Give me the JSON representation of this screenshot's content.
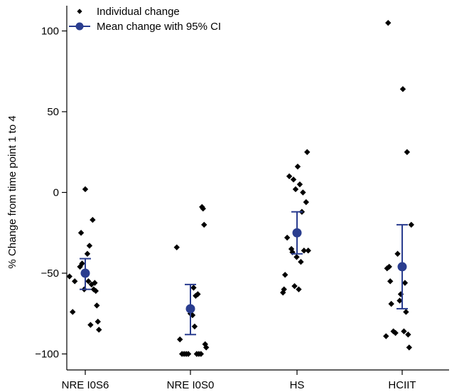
{
  "chart_data": {
    "type": "scatter",
    "title": "",
    "xlabel": "",
    "ylabel": "% Change from time point 1 to 4",
    "ylim": [
      -108,
      115
    ],
    "yticks": [
      -100,
      -50,
      0,
      50,
      100
    ],
    "ytick_labels": [
      "−100",
      "−50",
      "0",
      "50",
      "100"
    ],
    "categories": [
      "NRE I0S6",
      "NRE I0S0",
      "HS",
      "HCIIT"
    ],
    "grid": false,
    "legend_position": "top-left",
    "legend": {
      "individual_label": "Individual change",
      "mean_label": "Mean change with 95% CI"
    },
    "colors": {
      "individual": "#000000",
      "mean": "#2a3d8f"
    },
    "series": [
      {
        "name": "Individual change",
        "points": [
          [
            0.88,
            -74
          ],
          [
            0.85,
            -52
          ],
          [
            0.9,
            -55
          ],
          [
            0.95,
            -46
          ],
          [
            0.97,
            -44
          ],
          [
            0.96,
            -25
          ],
          [
            1.0,
            2
          ],
          [
            0.99,
            -60
          ],
          [
            1.02,
            -38
          ],
          [
            1.04,
            -33
          ],
          [
            1.07,
            -17
          ],
          [
            1.03,
            -55
          ],
          [
            1.06,
            -57
          ],
          [
            1.08,
            -60
          ],
          [
            1.09,
            -56
          ],
          [
            1.1,
            -61
          ],
          [
            1.11,
            -70
          ],
          [
            1.05,
            -82
          ],
          [
            1.12,
            -80
          ],
          [
            1.13,
            -85
          ]
        ]
      },
      {
        "name": "Individual change",
        "points": [
          [
            1.87,
            -34
          ],
          [
            1.9,
            -91
          ],
          [
            1.92,
            -100
          ],
          [
            1.94,
            -100
          ],
          [
            1.96,
            -100
          ],
          [
            1.98,
            -100
          ],
          [
            2.0,
            -75
          ],
          [
            2.02,
            -76
          ],
          [
            2.03,
            -59
          ],
          [
            2.04,
            -83
          ],
          [
            2.05,
            -64
          ],
          [
            2.07,
            -63
          ],
          [
            2.06,
            -100
          ],
          [
            2.08,
            -100
          ],
          [
            2.1,
            -100
          ],
          [
            2.11,
            -9
          ],
          [
            2.12,
            -10
          ],
          [
            2.13,
            -20
          ],
          [
            2.14,
            -94
          ],
          [
            2.15,
            -96
          ]
        ]
      },
      {
        "name": "Individual change",
        "points": [
          [
            2.88,
            -62
          ],
          [
            2.89,
            -60
          ],
          [
            2.9,
            -51
          ],
          [
            2.92,
            -28
          ],
          [
            2.94,
            10
          ],
          [
            2.96,
            -35
          ],
          [
            2.97,
            -37
          ],
          [
            2.98,
            8
          ],
          [
            2.99,
            -58
          ],
          [
            3.0,
            2
          ],
          [
            3.01,
            -40
          ],
          [
            3.02,
            16
          ],
          [
            3.03,
            -60
          ],
          [
            3.04,
            5
          ],
          [
            3.05,
            -43
          ],
          [
            3.06,
            -12
          ],
          [
            3.07,
            0
          ],
          [
            3.08,
            -36
          ],
          [
            3.1,
            -6
          ],
          [
            3.11,
            25
          ],
          [
            3.12,
            -36
          ]
        ]
      },
      {
        "name": "Individual change",
        "points": [
          [
            3.86,
            -89
          ],
          [
            3.87,
            -47
          ],
          [
            3.89,
            -46
          ],
          [
            3.9,
            -55
          ],
          [
            3.91,
            -69
          ],
          [
            3.93,
            -86
          ],
          [
            3.95,
            -87
          ],
          [
            3.97,
            -38
          ],
          [
            3.99,
            -67
          ],
          [
            4.0,
            -63
          ],
          [
            4.02,
            64
          ],
          [
            4.03,
            -86
          ],
          [
            4.04,
            -56
          ],
          [
            4.05,
            -74
          ],
          [
            4.06,
            25
          ],
          [
            4.07,
            -88
          ],
          [
            4.08,
            -96
          ],
          [
            4.1,
            -20
          ],
          [
            3.88,
            105
          ]
        ]
      }
    ],
    "means": [
      {
        "category": "NRE I0S6",
        "mean": -50,
        "ci_low": -60,
        "ci_high": -41
      },
      {
        "category": "NRE I0S0",
        "mean": -72,
        "ci_low": -88,
        "ci_high": -57
      },
      {
        "category": "HS",
        "mean": -25,
        "ci_low": -38,
        "ci_high": -12
      },
      {
        "category": "HCIIT",
        "mean": -46,
        "ci_low": -72,
        "ci_high": -20
      }
    ]
  }
}
